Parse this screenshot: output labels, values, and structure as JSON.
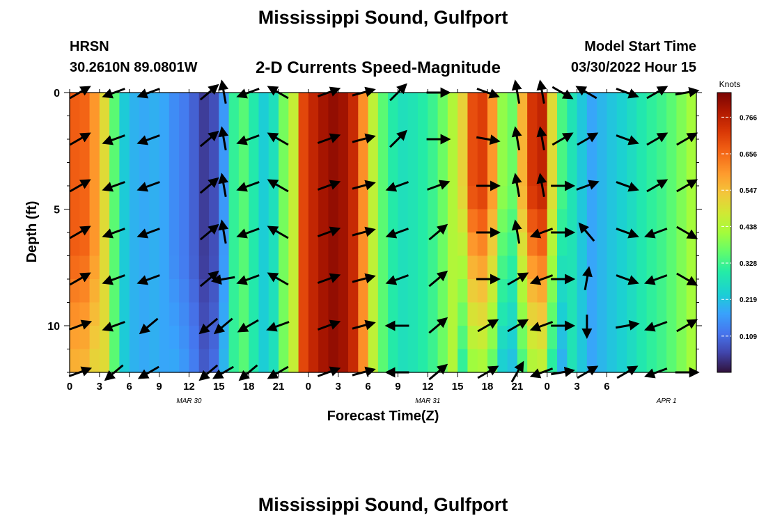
{
  "page": {
    "title": "Mississippi Sound, Gulfport",
    "station": "HRSN",
    "coords": "30.2610N  89.0801W",
    "subtitle": "2-D Currents Speed-Magnitude",
    "model_label": "Model Start Time",
    "model_time": "03/30/2022 Hour 15",
    "footer_title": "Mississippi Sound, Gulfport"
  },
  "chart_data": {
    "type": "heatmap",
    "xlabel": "Forecast Time(Z)",
    "ylabel": "Depth (ft)",
    "x_ticks": [
      "0",
      "3",
      "6",
      "9",
      "12",
      "15",
      "18",
      "21",
      "0",
      "3",
      "6",
      "9",
      "12",
      "15",
      "18",
      "21",
      "0",
      "3",
      "6"
    ],
    "date_labels": [
      {
        "text": "MAR 30",
        "hour": 12
      },
      {
        "text": "MAR 31",
        "hour": 36
      },
      {
        "text": "APR 1",
        "hour": 60
      }
    ],
    "x_range_hours": [
      0,
      63
    ],
    "y_ticks": [
      0,
      5,
      10
    ],
    "y_range_ft": [
      0,
      12
    ],
    "colorbar": {
      "title": "Knots",
      "ticks": [
        "0.766",
        "0.656",
        "0.547",
        "0.438",
        "0.328",
        "0.219",
        "0.109"
      ],
      "tick_values": [
        0.766,
        0.656,
        0.547,
        0.438,
        0.328,
        0.219,
        0.109
      ],
      "range": [
        0.0,
        0.84
      ]
    },
    "arrow_columns_hours": [
      1,
      4.5,
      8,
      14,
      15.5,
      18,
      21,
      26,
      29.5,
      33,
      37,
      42,
      45,
      47.5,
      49.5,
      52,
      56,
      59,
      62
    ],
    "arrow_depths_ft": [
      0,
      2,
      4,
      6,
      8,
      10,
      12
    ]
  }
}
